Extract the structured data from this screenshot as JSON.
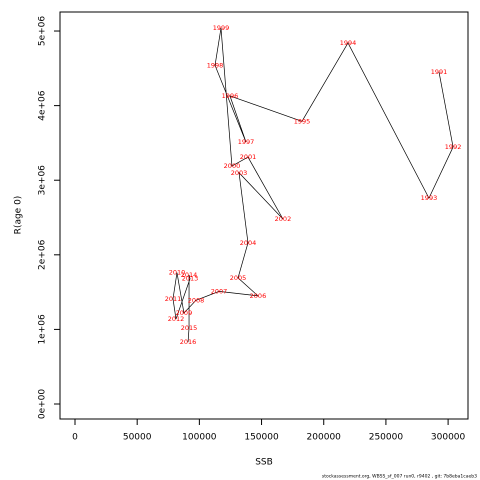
{
  "chart_data": {
    "type": "scatter",
    "x_label": "SSB",
    "y_label": "R(age 0)",
    "footnote": "stockassessment.org,  WBSS_sf_007 run0, r9402 , git: 7b8eba1caeb3",
    "labels": [
      1991,
      1992,
      1993,
      1994,
      1995,
      1996,
      1997,
      1998,
      1999,
      2000,
      2001,
      2002,
      2003,
      2004,
      2005,
      2006,
      2007,
      2008,
      2009,
      2010,
      2011,
      2012,
      2013,
      2014,
      2015,
      2016
    ],
    "x": [
      292700,
      304000,
      284600,
      219500,
      182500,
      124600,
      137500,
      112600,
      117400,
      126200,
      139100,
      167200,
      131900,
      139100,
      131100,
      147100,
      115800,
      97300,
      87600,
      82000,
      78800,
      81200,
      92500,
      91700,
      91700,
      90900
    ],
    "y": [
      4450000,
      3445000,
      2760000,
      4840000,
      3790000,
      4130000,
      3510000,
      4540000,
      5040000,
      3190000,
      3310000,
      2480000,
      3100000,
      2160000,
      1690000,
      1450000,
      1510000,
      1390000,
      1220000,
      1760000,
      1410000,
      1140000,
      1680000,
      1730000,
      1020000,
      830000
    ],
    "label_color": "#ff0000",
    "line_color": "#000000",
    "xlim": [
      -12060,
      316000
    ],
    "ylim": [
      -201000,
      5255000
    ],
    "xticks": [
      0,
      50000,
      100000,
      150000,
      200000,
      250000,
      300000
    ],
    "yticks": [
      {
        "value": 0,
        "label": "0e+00"
      },
      {
        "value": 1000000,
        "label": "1e+06"
      },
      {
        "value": 2000000,
        "label": "2e+06"
      },
      {
        "value": 3000000,
        "label": "3e+06"
      },
      {
        "value": 4000000,
        "label": "4e+06"
      },
      {
        "value": 5000000,
        "label": "5e+06"
      }
    ]
  }
}
